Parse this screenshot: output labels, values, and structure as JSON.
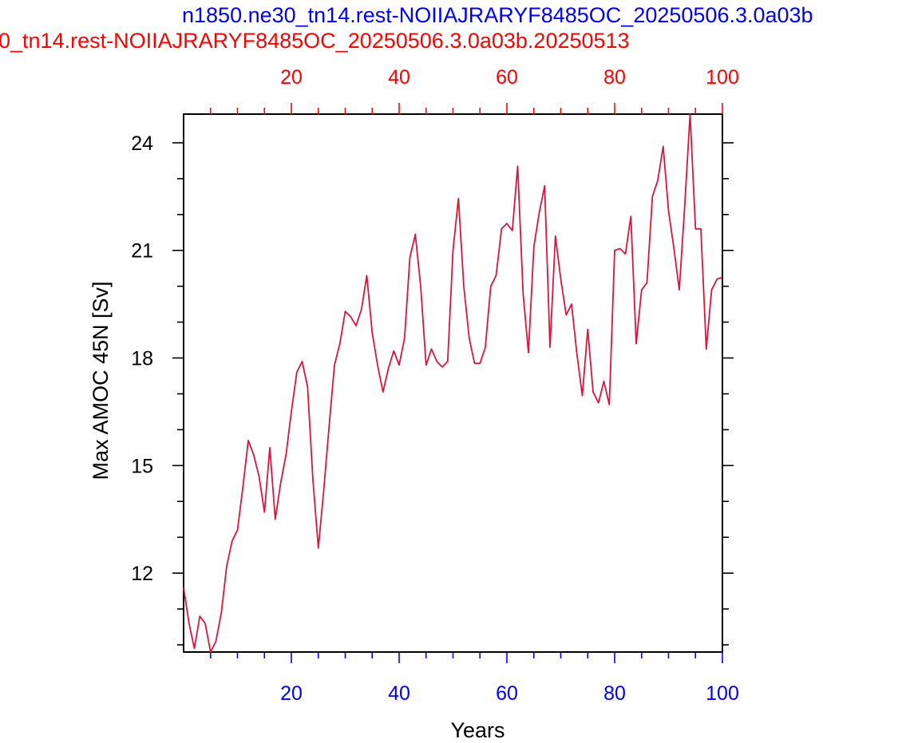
{
  "titles": {
    "blue": "n1850.ne30_tn14.rest-NOIIAJRARYF8485OC_20250506.3.0a03b",
    "red": "0_tn14.rest-NOIIAJRARYF8485OC_20250506.3.0a03b.20250513"
  },
  "colors": {
    "blue_axis": "#0000ff",
    "red_axis": "#ff0000",
    "line": "#dc143c"
  },
  "chart_data": {
    "type": "line",
    "title": "",
    "xlabel": "Years",
    "ylabel": "Max AMOC 45N [Sv]",
    "xlim": [
      0,
      100
    ],
    "ylim": [
      9.8,
      24.8
    ],
    "x_ticks": [
      20,
      40,
      60,
      80,
      100
    ],
    "x_tick_labels": [
      "20",
      "40",
      "60",
      "80",
      "100"
    ],
    "top_x_ticks": [
      20,
      40,
      60,
      80,
      100
    ],
    "top_x_tick_labels": [
      "20",
      "40",
      "60",
      "80",
      "100"
    ],
    "y_ticks": [
      12,
      15,
      18,
      21,
      24
    ],
    "y_tick_labels": [
      "12",
      "15",
      "18",
      "21",
      "24"
    ],
    "grid": false,
    "x": [
      0,
      1,
      2,
      3,
      4,
      5,
      6,
      7,
      8,
      9,
      10,
      11,
      12,
      13,
      14,
      15,
      16,
      17,
      18,
      19,
      20,
      21,
      22,
      23,
      24,
      25,
      26,
      27,
      28,
      29,
      30,
      31,
      32,
      33,
      34,
      35,
      36,
      37,
      38,
      39,
      40,
      41,
      42,
      43,
      44,
      45,
      46,
      47,
      48,
      49,
      50,
      51,
      52,
      53,
      54,
      55,
      56,
      57,
      58,
      59,
      60,
      61,
      62,
      63,
      64,
      65,
      66,
      67,
      68,
      69,
      70,
      71,
      72,
      73,
      74,
      75,
      76,
      77,
      78,
      79,
      80,
      81,
      82,
      83,
      84,
      85,
      86,
      87,
      88,
      89,
      90,
      91,
      92,
      93,
      94,
      95,
      96,
      97,
      98,
      99,
      100
    ],
    "series": [
      {
        "values": [
          11.6,
          10.6,
          9.9,
          10.8,
          10.6,
          9.8,
          10.1,
          10.9,
          12.2,
          12.9,
          13.2,
          14.4,
          15.7,
          15.3,
          14.7,
          13.7,
          15.5,
          13.5,
          14.5,
          15.3,
          16.5,
          17.6,
          17.9,
          17.2,
          14.6,
          12.7,
          14.3,
          16.1,
          17.8,
          18.4,
          19.3,
          19.15,
          18.9,
          19.35,
          20.3,
          18.7,
          17.8,
          17.05,
          17.7,
          18.2,
          17.8,
          18.55,
          20.8,
          21.45,
          20.0,
          17.8,
          18.25,
          17.9,
          17.75,
          17.9,
          21.0,
          22.45,
          20.0,
          18.55,
          17.85,
          17.85,
          18.3,
          20.0,
          20.3,
          21.6,
          21.75,
          21.55,
          23.35,
          19.8,
          18.15,
          21.1,
          22.05,
          22.8,
          18.3,
          21.4,
          20.2,
          19.2,
          19.5,
          18.1,
          16.95,
          18.8,
          17.05,
          16.75,
          17.35,
          16.7,
          21.0,
          21.05,
          20.9,
          21.95,
          18.4,
          19.9,
          20.1,
          22.5,
          22.95,
          23.9,
          22.1,
          21.05,
          19.9,
          22.25,
          24.8,
          21.6,
          21.6,
          18.25,
          19.9,
          20.2,
          20.25
        ]
      }
    ]
  }
}
